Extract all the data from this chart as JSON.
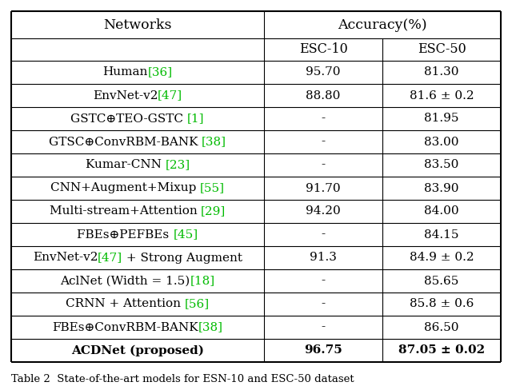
{
  "title": "Table 2  State-of-the-art models for ESN-10 and ESC-50 dataset",
  "rows": [
    {
      "network": [
        [
          "Human",
          "black"
        ],
        [
          "[36]",
          "green"
        ]
      ],
      "esc10": "95.70",
      "esc50": "81.30",
      "bold": false
    },
    {
      "network": [
        [
          "EnvNet-v2",
          "black"
        ],
        [
          "[47]",
          "green"
        ]
      ],
      "esc10": "88.80",
      "esc50": "81.6 ± 0.2",
      "bold": false
    },
    {
      "network": [
        [
          "GSTC⊕TEO-GSTC ",
          "black"
        ],
        [
          "[1]",
          "green"
        ]
      ],
      "esc10": "-",
      "esc50": "81.95",
      "bold": false
    },
    {
      "network": [
        [
          "GTSC⊕ConvRBM-BANK ",
          "black"
        ],
        [
          "[38]",
          "green"
        ]
      ],
      "esc10": "-",
      "esc50": "83.00",
      "bold": false
    },
    {
      "network": [
        [
          "Kumar-CNN ",
          "black"
        ],
        [
          "[23]",
          "green"
        ]
      ],
      "esc10": "-",
      "esc50": "83.50",
      "bold": false
    },
    {
      "network": [
        [
          "CNN+Augment+Mixup ",
          "black"
        ],
        [
          "[55]",
          "green"
        ]
      ],
      "esc10": "91.70",
      "esc50": "83.90",
      "bold": false
    },
    {
      "network": [
        [
          "Multi-stream+Attention ",
          "black"
        ],
        [
          "[29]",
          "green"
        ]
      ],
      "esc10": "94.20",
      "esc50": "84.00",
      "bold": false
    },
    {
      "network": [
        [
          "FBEs⊕PEFBEs ",
          "black"
        ],
        [
          "[45]",
          "green"
        ]
      ],
      "esc10": "-",
      "esc50": "84.15",
      "bold": false
    },
    {
      "network": [
        [
          "EnvNet-v2",
          "black"
        ],
        [
          "[47]",
          "green"
        ],
        [
          " + Strong Augment",
          "black"
        ]
      ],
      "esc10": "91.3",
      "esc50": "84.9 ± 0.2",
      "bold": false
    },
    {
      "network": [
        [
          "AclNet (Width = 1.5)",
          "black"
        ],
        [
          "[18]",
          "green"
        ]
      ],
      "esc10": "-",
      "esc50": "85.65",
      "bold": false
    },
    {
      "network": [
        [
          "CRNN + Attention ",
          "black"
        ],
        [
          "[56]",
          "green"
        ]
      ],
      "esc10": "-",
      "esc50": "85.8 ± 0.6",
      "bold": false
    },
    {
      "network": [
        [
          "FBEs⊕ConvRBM-BANK",
          "black"
        ],
        [
          "[38]",
          "green"
        ]
      ],
      "esc10": "-",
      "esc50": "86.50",
      "bold": false
    },
    {
      "network": [
        [
          "ACDNet (proposed)",
          "black"
        ]
      ],
      "esc10": "96.75",
      "esc50": "87.05 ± 0.02",
      "bold": true
    }
  ],
  "bg_color": "#ffffff",
  "text_color": "#000000",
  "green_color": "#00bb00",
  "figsize": [
    6.4,
    4.88
  ],
  "dpi": 100
}
